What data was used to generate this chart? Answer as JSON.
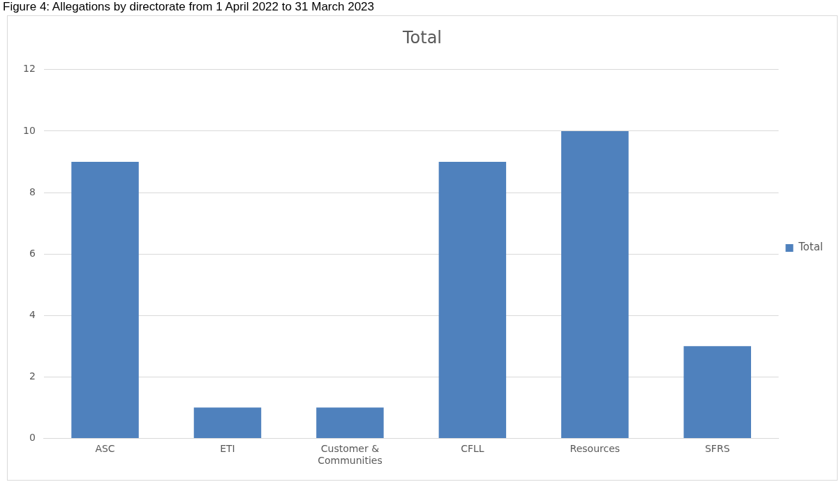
{
  "chart_data": {
    "type": "bar",
    "title": "Total",
    "annotations": [
      "Figure 4: Allegations by directorate from 1 April 2022 to 31 March 2023"
    ],
    "categories": [
      "ASC",
      "ETI",
      "Customer & Communities",
      "CFLL",
      "Resources",
      "SFRS"
    ],
    "series": [
      {
        "name": "Total",
        "color": "#4f81bd",
        "values": [
          9,
          1,
          1,
          9,
          10,
          3
        ]
      }
    ],
    "ylim": [
      0,
      12
    ],
    "yticks": [
      0,
      2,
      4,
      6,
      8,
      10,
      12
    ],
    "grid": "y",
    "legend": "right"
  }
}
